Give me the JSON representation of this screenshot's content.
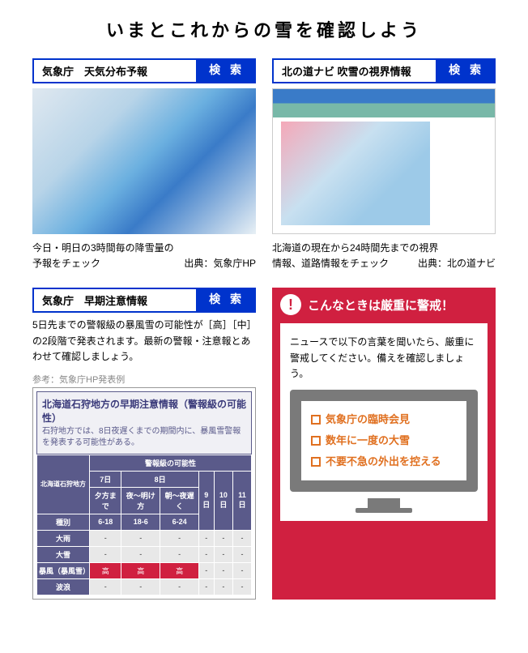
{
  "title": "いまとこれからの雪を確認しよう",
  "search_label": "検 索",
  "panels": {
    "p1": {
      "label": "気象庁　天気分布予報",
      "caption_l1": "今日・明日の3時間毎の降雪量の",
      "caption_l2": "予報をチェック",
      "source": "出典：気象庁HP"
    },
    "p2": {
      "label": "北の道ナビ 吹雪の視界情報",
      "caption_l1": "北海道の現在から24時間先までの視界",
      "caption_l2": "情報、道路情報をチェック",
      "source": "出典：北の道ナビ"
    },
    "p3": {
      "label": "気象庁　早期注意情報",
      "desc": "5日先までの警報級の暴風雪の可能性が［高］［中］の2段階で発表されます。最新の警報・注意報とあわせて確認しましょう。",
      "ref": "参考：気象庁HP発表例",
      "info_title": "北海道石狩地方の早期注意情報（警報級の可能性）",
      "info_sub": "石狩地方では、8日夜遅くまでの期間内に、暴風雪警報を発表する可能性がある。",
      "table": {
        "region_col": "北海道石狩地方",
        "possibility_header": "警報級の可能性",
        "type_col": "種別",
        "days": [
          "7日",
          "8日",
          "9日",
          "10日",
          "11日"
        ],
        "periods": [
          "夕方まで",
          "夜～明け方",
          "朝～夜遅く"
        ],
        "hours": [
          "6-18",
          "18-6",
          "6-24"
        ],
        "rows": [
          {
            "name": "大雨",
            "vals": [
              "-",
              "-",
              "-",
              "-",
              "-",
              "-"
            ]
          },
          {
            "name": "大雪",
            "vals": [
              "-",
              "-",
              "-",
              "-",
              "-",
              "-"
            ]
          },
          {
            "name": "暴風（暴風雪）",
            "vals": [
              "高",
              "高",
              "高",
              "-",
              "-",
              "-"
            ],
            "hi": [
              0,
              1,
              2
            ]
          },
          {
            "name": "波浪",
            "vals": [
              "-",
              "-",
              "-",
              "-",
              "-",
              "-"
            ]
          }
        ]
      }
    }
  },
  "alert": {
    "header": "こんなときは厳重に警戒！",
    "text": "ニュースで以下の言葉を聞いたら、厳重に警戒してください。備えを確認しましょう。",
    "items": [
      "気象庁の臨時会見",
      "数年に一度の大雪",
      "不要不急の外出を控える"
    ]
  }
}
